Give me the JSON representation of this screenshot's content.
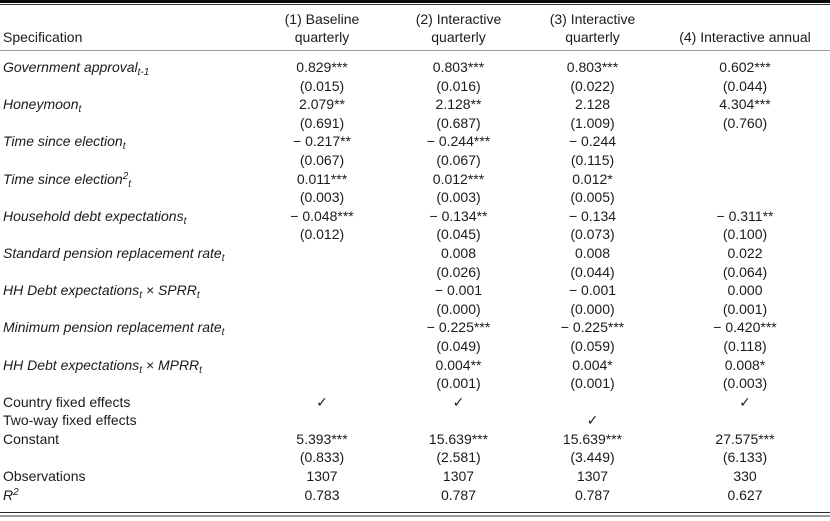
{
  "table": {
    "header": {
      "spec_label": "Specification",
      "col1": "(1) Baseline\nquarterly",
      "col2": "(2) Interactive\nquarterly",
      "col3": "(3) Interactive\nquarterly",
      "col4": "(4) Interactive annual"
    },
    "rows": [
      {
        "label": "Government approval",
        "sup": "",
        "sub": "t-1",
        "mid": "",
        "label2": "",
        "sub2": "",
        "c1": {
          "est": "0.829***",
          "se": "(0.015)"
        },
        "c2": {
          "est": "0.803***",
          "se": "(0.016)"
        },
        "c3": {
          "est": "0.803***",
          "se": "(0.022)"
        },
        "c4": {
          "est": "0.602***",
          "se": "(0.044)"
        }
      },
      {
        "label": "Honeymoon",
        "sup": "",
        "sub": "t",
        "mid": "",
        "label2": "",
        "sub2": "",
        "c1": {
          "est": "2.079**",
          "se": "(0.691)"
        },
        "c2": {
          "est": "2.128**",
          "se": "(0.687)"
        },
        "c3": {
          "est": "2.128",
          "se": "(1.009)"
        },
        "c4": {
          "est": "4.304***",
          "se": "(0.760)"
        }
      },
      {
        "label": "Time since election",
        "sup": "",
        "sub": "t",
        "mid": "",
        "label2": "",
        "sub2": "",
        "c1": {
          "est": "− 0.217**",
          "se": "(0.067)"
        },
        "c2": {
          "est": "− 0.244***",
          "se": "(0.067)"
        },
        "c3": {
          "est": "− 0.244",
          "se": "(0.115)"
        },
        "c4": {
          "est": "",
          "se": ""
        }
      },
      {
        "label": "Time since election",
        "sup": "2",
        "sub": "t",
        "mid": "",
        "label2": "",
        "sub2": "",
        "c1": {
          "est": "0.011***",
          "se": "(0.003)"
        },
        "c2": {
          "est": "0.012***",
          "se": "(0.003)"
        },
        "c3": {
          "est": "0.012*",
          "se": "(0.005)"
        },
        "c4": {
          "est": "",
          "se": ""
        }
      },
      {
        "label": "Household debt expectations",
        "sup": "",
        "sub": "t",
        "mid": "",
        "label2": "",
        "sub2": "",
        "c1": {
          "est": "− 0.048***",
          "se": "(0.012)"
        },
        "c2": {
          "est": "− 0.134**",
          "se": "(0.045)"
        },
        "c3": {
          "est": "− 0.134",
          "se": "(0.073)"
        },
        "c4": {
          "est": "− 0.311**",
          "se": "(0.100)"
        }
      },
      {
        "label": "Standard pension replacement rate",
        "sup": "",
        "sub": "t",
        "mid": "",
        "label2": "",
        "sub2": "",
        "c1": {
          "est": "",
          "se": ""
        },
        "c2": {
          "est": "0.008",
          "se": "(0.026)"
        },
        "c3": {
          "est": "0.008",
          "se": "(0.044)"
        },
        "c4": {
          "est": "0.022",
          "se": "(0.064)"
        }
      },
      {
        "label": "HH Debt expectations",
        "sup": "",
        "sub": "t",
        "mid": " × ",
        "label2": "SPRR",
        "sub2": "t",
        "c1": {
          "est": "",
          "se": ""
        },
        "c2": {
          "est": "− 0.001",
          "se": "(0.000)"
        },
        "c3": {
          "est": "− 0.001",
          "se": "(0.000)"
        },
        "c4": {
          "est": "0.000",
          "se": "(0.001)"
        }
      },
      {
        "label": "Minimum pension replacement rate",
        "sup": "",
        "sub": "t",
        "mid": "",
        "label2": "",
        "sub2": "",
        "c1": {
          "est": "",
          "se": ""
        },
        "c2": {
          "est": "− 0.225***",
          "se": "(0.049)"
        },
        "c3": {
          "est": "− 0.225***",
          "se": "(0.059)"
        },
        "c4": {
          "est": "− 0.420***",
          "se": "(0.118)"
        }
      },
      {
        "label": "HH Debt expectations",
        "sup": "",
        "sub": "t",
        "mid": " × ",
        "label2": "MPRR",
        "sub2": "t",
        "c1": {
          "est": "",
          "se": ""
        },
        "c2": {
          "est": "0.004**",
          "se": "(0.001)"
        },
        "c3": {
          "est": "0.004*",
          "se": "(0.001)"
        },
        "c4": {
          "est": "0.008*",
          "se": "(0.003)"
        }
      },
      {
        "label": "Country fixed effects",
        "sup": "",
        "sub": "",
        "mid": "",
        "label2": "",
        "sub2": "",
        "c1": {
          "est": "✓"
        },
        "c2": {
          "est": "✓"
        },
        "c3": {
          "est": ""
        },
        "c4": {
          "est": "✓"
        }
      },
      {
        "label": "Two-way fixed effects",
        "sup": "",
        "sub": "",
        "mid": "",
        "label2": "",
        "sub2": "",
        "c1": {
          "est": ""
        },
        "c2": {
          "est": ""
        },
        "c3": {
          "est": "✓"
        },
        "c4": {
          "est": ""
        }
      },
      {
        "label": "Constant",
        "sup": "",
        "sub": "",
        "mid": "",
        "label2": "",
        "sub2": "",
        "c1": {
          "est": "5.393***",
          "se": "(0.833)"
        },
        "c2": {
          "est": "15.639***",
          "se": "(2.581)"
        },
        "c3": {
          "est": "15.639***",
          "se": "(3.449)"
        },
        "c4": {
          "est": "27.575***",
          "se": "(6.133)"
        }
      },
      {
        "label": "Observations",
        "sup": "",
        "sub": "",
        "mid": "",
        "label2": "",
        "sub2": "",
        "c1": {
          "est": "1307"
        },
        "c2": {
          "est": "1307"
        },
        "c3": {
          "est": "1307"
        },
        "c4": {
          "est": "330"
        }
      },
      {
        "label": "R",
        "sup": "2",
        "sub": "",
        "mid": "",
        "label2": "",
        "sub2": "",
        "c1": {
          "est": "0.783"
        },
        "c2": {
          "est": "0.787"
        },
        "c3": {
          "est": "0.787"
        },
        "c4": {
          "est": "0.627"
        }
      }
    ]
  }
}
